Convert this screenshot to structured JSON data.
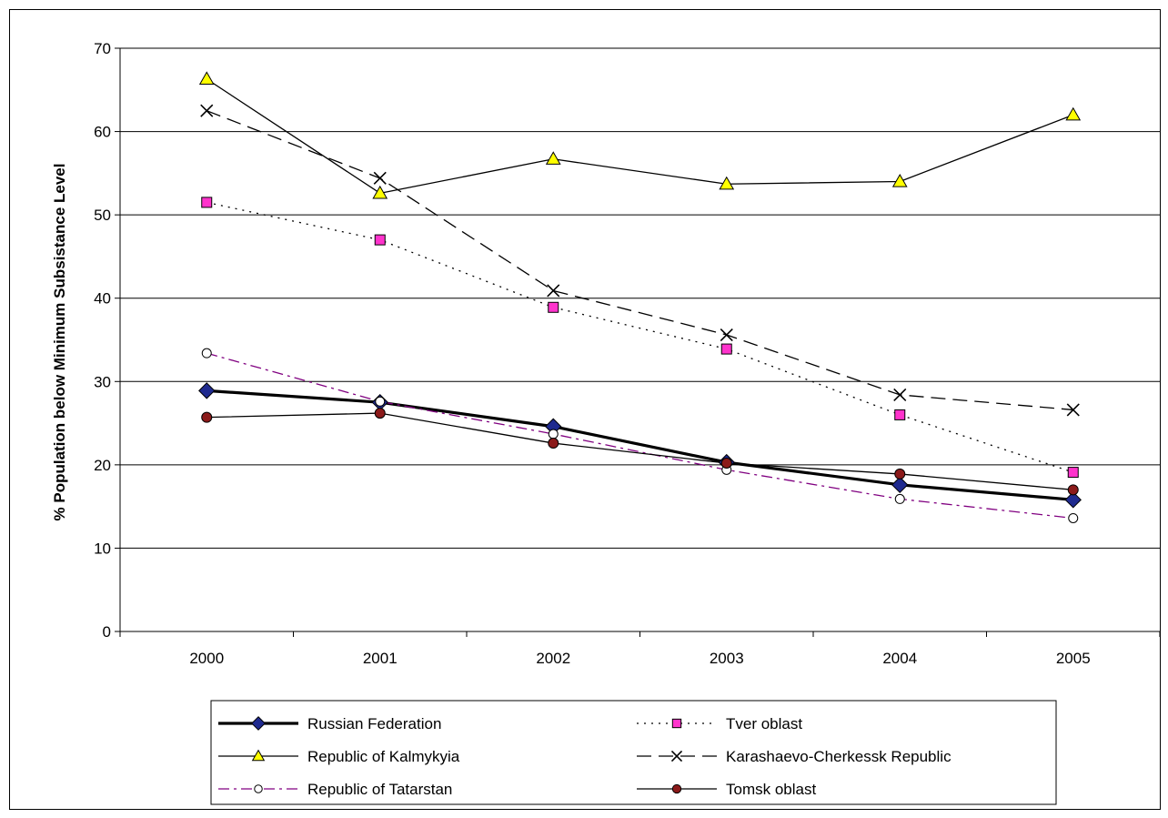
{
  "chart_data": {
    "type": "line",
    "title": "",
    "xlabel": "",
    "ylabel": "% Population below Minimum Subsistance Level",
    "ylim": [
      0,
      70
    ],
    "yticks": [
      "0",
      "10",
      "20",
      "30",
      "40",
      "50",
      "60",
      "70"
    ],
    "categories": [
      "2000",
      "2001",
      "2002",
      "2003",
      "2004",
      "2005"
    ],
    "grid": "horizontal",
    "legend_position": "bottom",
    "series": [
      {
        "name": "Russian Federation",
        "values": [
          28.9,
          27.5,
          24.6,
          20.3,
          17.6,
          15.8
        ],
        "color": "#000000",
        "marker": "diamond",
        "marker_fill": "#1F2A8F",
        "dash": "solid",
        "width": "thick"
      },
      {
        "name": "Tver oblast",
        "values": [
          51.5,
          47.0,
          38.9,
          33.9,
          26.0,
          19.1
        ],
        "color": "#000000",
        "marker": "square",
        "marker_fill": "#FF33CC",
        "dash": "dotted",
        "width": "thin"
      },
      {
        "name": "Republic of Kalmykyia",
        "values": [
          66.3,
          52.6,
          56.7,
          53.7,
          54.0,
          62.0
        ],
        "color": "#000000",
        "marker": "triangle",
        "marker_fill": "#FFFF00",
        "dash": "solid",
        "width": "thin"
      },
      {
        "name": "Karashaevo-Cherkessk Republic",
        "values": [
          62.5,
          54.4,
          40.9,
          35.6,
          28.4,
          26.6
        ],
        "color": "#000000",
        "marker": "x",
        "marker_fill": "none",
        "dash": "dashed",
        "width": "thin"
      },
      {
        "name": "Republic of Tatarstan",
        "values": [
          33.4,
          27.6,
          23.7,
          19.4,
          15.9,
          13.6
        ],
        "color": "#800080",
        "marker": "circle-open",
        "marker_fill": "#FFFFFF",
        "dash": "dashdot",
        "width": "thin"
      },
      {
        "name": "Tomsk oblast",
        "values": [
          25.7,
          26.2,
          22.6,
          20.2,
          18.9,
          17.0
        ],
        "color": "#000000",
        "marker": "circle",
        "marker_fill": "#8B1A1A",
        "dash": "solid",
        "width": "thin"
      }
    ]
  }
}
